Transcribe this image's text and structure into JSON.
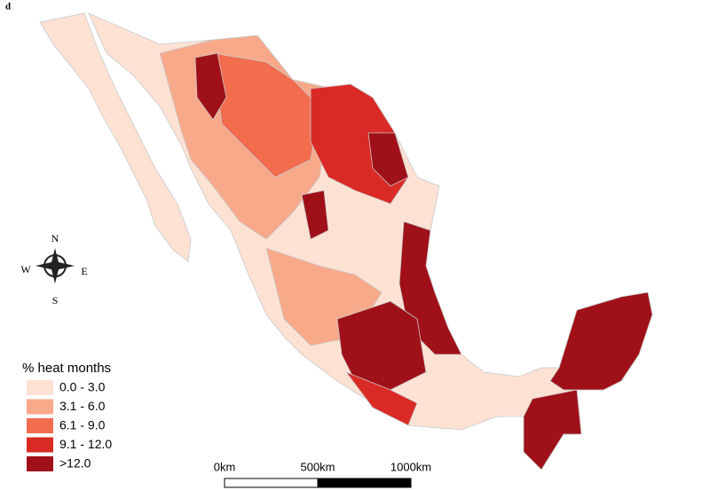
{
  "panel_label": "d",
  "compass": {
    "north": "N",
    "south": "S",
    "east": "E",
    "west": "W"
  },
  "legend": {
    "title": "% heat months",
    "items": [
      {
        "label": "0.0 - 3.0",
        "color": "#fde2d4"
      },
      {
        "label": "3.1 - 6.0",
        "color": "#f8a98a"
      },
      {
        "label": "6.1 - 9.0",
        "color": "#f26c4e"
      },
      {
        "label": "9.1 - 12.0",
        "color": "#da2a25"
      },
      {
        "label": ">12.0",
        "color": "#a01018"
      }
    ]
  },
  "scale_bar": {
    "labels": [
      "0km",
      "500km",
      "1000km"
    ]
  }
}
